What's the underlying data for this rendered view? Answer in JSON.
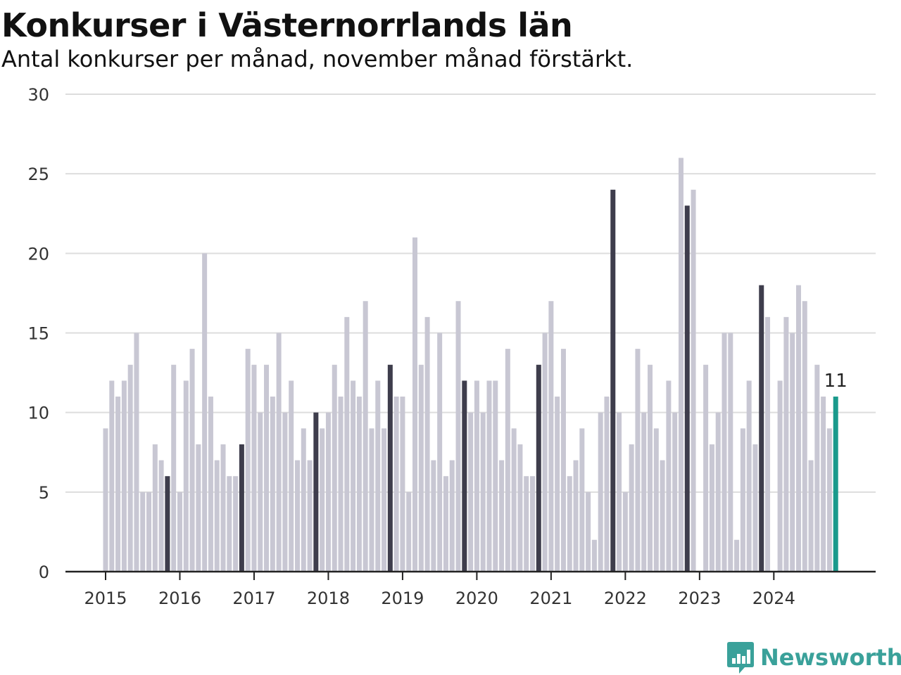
{
  "header": {
    "title": "Konkurser i Västernorrlands län",
    "subtitle": "Antal konkurser per månad, november månad förstärkt."
  },
  "brand": {
    "name": "Newsworthy",
    "icon": "chart-bubble-logo"
  },
  "colors": {
    "bar": "#c8c7d3",
    "november": "#3e3d4c",
    "latest": "#1a9a8c",
    "grid": "#dddddd",
    "axis": "#222222",
    "brand": "#3aa19a"
  },
  "chart_data": {
    "type": "bar",
    "title": "Konkurser i Västernorrlands län",
    "ylim": [
      0,
      30
    ],
    "y_ticks": [
      0,
      5,
      10,
      15,
      20,
      25,
      30
    ],
    "x_tick_labels": [
      "2015",
      "2016",
      "2017",
      "2018",
      "2019",
      "2020",
      "2021",
      "2022",
      "2023",
      "2024"
    ],
    "grid": true,
    "start": "2015-01",
    "highlight_month": 11,
    "latest_label": "11",
    "values": [
      9,
      12,
      11,
      12,
      13,
      15,
      5,
      5,
      8,
      7,
      6,
      13,
      5,
      12,
      14,
      8,
      20,
      11,
      7,
      8,
      6,
      6,
      8,
      14,
      13,
      10,
      13,
      11,
      15,
      10,
      12,
      7,
      9,
      7,
      10,
      9,
      10,
      13,
      11,
      16,
      12,
      11,
      17,
      9,
      12,
      9,
      13,
      11,
      11,
      5,
      21,
      13,
      16,
      7,
      15,
      6,
      7,
      17,
      12,
      10,
      12,
      10,
      12,
      12,
      7,
      14,
      9,
      8,
      6,
      6,
      13,
      15,
      17,
      11,
      14,
      6,
      7,
      9,
      5,
      2,
      10,
      11,
      24,
      10,
      5,
      8,
      14,
      10,
      13,
      9,
      7,
      12,
      10,
      26,
      23,
      24,
      0,
      13,
      8,
      10,
      15,
      15,
      2,
      9,
      12,
      8,
      18,
      16,
      0,
      12,
      16,
      15,
      18,
      17,
      7,
      13,
      11,
      9,
      11
    ]
  }
}
